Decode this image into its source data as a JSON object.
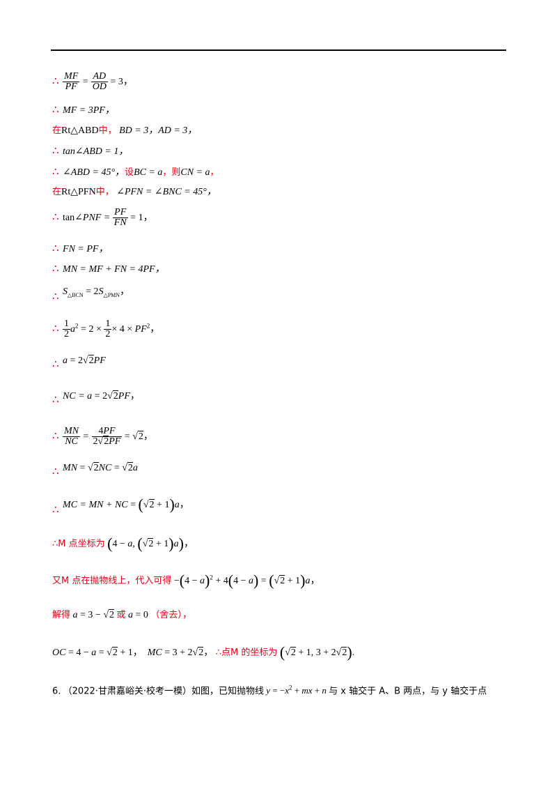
{
  "lines": {
    "l1": {
      "sym": "∴",
      "text": ""
    },
    "l2": {
      "sym": "∴",
      "text": "MF = 3PF，"
    },
    "l3": {
      "prefix": "在",
      "tri": "Rt△ABD",
      "mid": "中，",
      "expr": "BD = 3，AD = 3，"
    },
    "l4": {
      "sym": "∴",
      "text": "tan∠ABD = 1，"
    },
    "l5": {
      "sym": "∴",
      "expr1": "∠ABD = 45°，",
      "set": "设",
      "expr2": "BC = a",
      "then": "，则",
      "expr3": "CN = a",
      "end": "，"
    },
    "l6": {
      "prefix": "在",
      "tri": "Rt△PFN",
      "mid": "中，",
      "expr": "∠PFN = ∠BNC = 45°，"
    },
    "l7": {
      "sym": "∴"
    },
    "l8": {
      "sym": "∴",
      "text": "FN = PF，"
    },
    "l9": {
      "sym": "∴",
      "text": "MN = MF + FN = 4PF，"
    },
    "l10": {
      "sym": "∴"
    },
    "l11": {
      "sym": "∴"
    },
    "l12": {
      "sym": "∴"
    },
    "l13": {
      "sym": "∴"
    },
    "l14": {
      "sym": "∴"
    },
    "l15": {
      "sym": "∴"
    },
    "l16": {
      "sym": "∴"
    },
    "l17": {
      "text1": "∴M 点坐标为"
    },
    "l18": {
      "text1": "又M 点在抛物线上，代入可得"
    },
    "l19": {
      "text1": "解得",
      "or": "或",
      "drop": "（舍去）"
    },
    "l20": {
      "tail": "∴点M 的坐标为"
    },
    "l21": {
      "num": "6.",
      "src": "（2022·甘肃嘉峪关·校考一模）如图，已知抛物线",
      "rest": "与 x 轴交于 A、B 两点，与 y 轴交于点"
    }
  }
}
